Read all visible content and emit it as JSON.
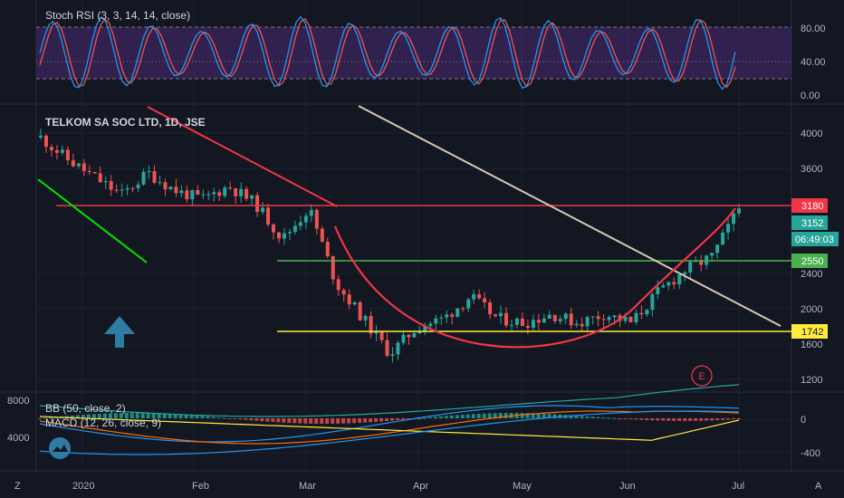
{
  "stoch": {
    "label": "Stoch RSI (3, 3, 14, 14, close)",
    "ticks": [
      "80.00",
      "40.00",
      "0.00"
    ],
    "colors": {
      "k": "#2196f3",
      "d": "#ef5350",
      "band": "#4a2a73"
    }
  },
  "main": {
    "title": "TELKOM SA SOC LTD, 1D, JSE",
    "ticks": [
      "4000",
      "3600",
      "2400",
      "2000",
      "1600",
      "1200"
    ],
    "tags": {
      "resistance": "3180",
      "last_price": "3152",
      "countdown": "06:49:03",
      "support": "2550",
      "low": "1742"
    },
    "tag_colors": {
      "resistance": "#f23645",
      "last_price": "#26a69a",
      "support": "#4caf50",
      "low": "#ffeb3b"
    },
    "earnings_marker": "E"
  },
  "lower": {
    "bb_label": "BB (50, close, 2)",
    "macd_label": "MACD (12, 26, close, 9)",
    "left_ticks": [
      "8000",
      "4000"
    ],
    "right_ticks": [
      "0",
      "-400"
    ]
  },
  "xaxis": [
    "2020",
    "Feb",
    "Mar",
    "Apr",
    "May",
    "Jun",
    "Jul"
  ],
  "corner": {
    "left": "Z",
    "right": "A"
  },
  "chart_data": {
    "type": "candlestick",
    "title": "TELKOM SA SOC LTD, 1D, JSE",
    "price_levels": {
      "resistance": 3180,
      "last": 3152,
      "support": 2550,
      "low": 1742
    },
    "close_path": [
      {
        "x": "2020-01-01",
        "y": 3950
      },
      {
        "x": "2020-01-08",
        "y": 3700
      },
      {
        "x": "2020-01-15",
        "y": 3500
      },
      {
        "x": "2020-01-22",
        "y": 3300
      },
      {
        "x": "2020-01-29",
        "y": 3550
      },
      {
        "x": "2020-02-05",
        "y": 3350
      },
      {
        "x": "2020-02-12",
        "y": 3250
      },
      {
        "x": "2020-02-19",
        "y": 3400
      },
      {
        "x": "2020-02-26",
        "y": 3200
      },
      {
        "x": "2020-03-04",
        "y": 2800
      },
      {
        "x": "2020-03-11",
        "y": 3150
      },
      {
        "x": "2020-03-18",
        "y": 2300
      },
      {
        "x": "2020-03-25",
        "y": 1900
      },
      {
        "x": "2020-04-01",
        "y": 1500
      },
      {
        "x": "2020-04-08",
        "y": 1800
      },
      {
        "x": "2020-04-15",
        "y": 1900
      },
      {
        "x": "2020-04-22",
        "y": 2150
      },
      {
        "x": "2020-04-29",
        "y": 1900
      },
      {
        "x": "2020-05-06",
        "y": 1850
      },
      {
        "x": "2020-05-13",
        "y": 1950
      },
      {
        "x": "2020-05-20",
        "y": 1850
      },
      {
        "x": "2020-05-27",
        "y": 1950
      },
      {
        "x": "2020-06-03",
        "y": 1850
      },
      {
        "x": "2020-06-10",
        "y": 2200
      },
      {
        "x": "2020-06-17",
        "y": 2450
      },
      {
        "x": "2020-06-24",
        "y": 2600
      },
      {
        "x": "2020-07-01",
        "y": 3152
      }
    ],
    "stoch_rsi": {
      "k_color": "#2196f3",
      "d_color": "#ef5350",
      "ylim": [
        0,
        100
      ],
      "upper": 80,
      "lower": 20
    },
    "ylim": [
      1100,
      4100
    ]
  }
}
